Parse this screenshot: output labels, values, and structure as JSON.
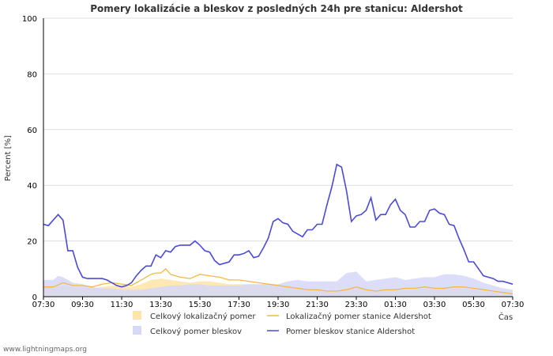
{
  "footer": "www.lightningmaps.org",
  "chart_data": {
    "type": "line",
    "title": "Pomery lokalizácie a bleskov z posledných 24h pre stanicu: Aldershot",
    "ylabel": "Percent   [%]",
    "xlabel": "Čas",
    "ylim": [
      0,
      100
    ],
    "yticks": [
      0,
      20,
      40,
      60,
      80,
      100
    ],
    "xlim": [
      0,
      24
    ],
    "xticks": [
      {
        "t": 0,
        "label": "07:30"
      },
      {
        "t": 2,
        "label": "09:30"
      },
      {
        "t": 4,
        "label": "11:30"
      },
      {
        "t": 6,
        "label": "13:30"
      },
      {
        "t": 8,
        "label": "15:30"
      },
      {
        "t": 10,
        "label": "17:30"
      },
      {
        "t": 12,
        "label": "19:30"
      },
      {
        "t": 14,
        "label": "21:30"
      },
      {
        "t": 16,
        "label": "23:30"
      },
      {
        "t": 18,
        "label": "01:30"
      },
      {
        "t": 20,
        "label": "03:30"
      },
      {
        "t": 22,
        "label": "05:30"
      },
      {
        "t": 24,
        "label": "07:30"
      }
    ],
    "legend": [
      {
        "label": "Celkový lokalizačný pomer",
        "kind": "area",
        "color": "#ffe5a8"
      },
      {
        "label": "Lokalizačný pomer stanice Aldershot",
        "kind": "line",
        "color": "#f5b942"
      },
      {
        "label": "Celkový pomer bleskov",
        "kind": "area",
        "color": "#d6d8f8"
      },
      {
        "label": "Pomer bleskov stanice Aldershot",
        "kind": "line",
        "color": "#4a4ad6"
      }
    ],
    "series": [
      {
        "name": "Pomer bleskov stanice Aldershot",
        "color": "#4a4ad6",
        "x": [
          0,
          0.25,
          0.5,
          0.75,
          1,
          1.25,
          1.5,
          1.75,
          2,
          2.25,
          2.5,
          2.75,
          3,
          3.25,
          3.5,
          3.75,
          4,
          4.25,
          4.5,
          4.75,
          5,
          5.25,
          5.5,
          5.75,
          6,
          6.25,
          6.5,
          6.75,
          7,
          7.25,
          7.5,
          7.75,
          8,
          8.25,
          8.5,
          8.75,
          9,
          9.25,
          9.5,
          9.75,
          10,
          10.25,
          10.5,
          10.75,
          11,
          11.25,
          11.5,
          11.75,
          12,
          12.25,
          12.5,
          12.75,
          13,
          13.25,
          13.5,
          13.75,
          14,
          14.25,
          14.5,
          14.75,
          15,
          15.25,
          15.5,
          15.75,
          16,
          16.25,
          16.5,
          16.75,
          17,
          17.25,
          17.5,
          17.75,
          18,
          18.25,
          18.5,
          18.75,
          19,
          19.25,
          19.5,
          19.75,
          20,
          20.25,
          20.5,
          20.75,
          21,
          21.25,
          21.5,
          21.75,
          22,
          22.25,
          22.5,
          22.75,
          23,
          23.25,
          23.5,
          23.75,
          24
        ],
        "values": [
          26,
          25.5,
          27.5,
          29.5,
          27.5,
          16.5,
          16.5,
          10.5,
          7,
          6.5,
          6.5,
          6.5,
          6.5,
          6,
          5,
          4,
          3.5,
          4,
          5,
          7.5,
          9.5,
          11,
          11,
          15,
          14,
          16.5,
          16,
          18,
          18.5,
          18.5,
          18.5,
          20,
          18.5,
          16.5,
          16,
          13,
          11.5,
          12,
          12.5,
          15,
          15,
          15.5,
          16.5,
          14,
          14.5,
          17.5,
          21,
          27,
          28,
          26.5,
          26,
          23.5,
          22.5,
          21.5,
          24,
          24,
          26,
          26,
          33,
          39.5,
          47.5,
          46.5,
          38,
          27,
          29,
          29.5,
          31,
          35.5,
          27.5,
          29.5,
          29.5,
          33,
          35,
          31,
          29.5,
          25,
          25,
          27,
          27,
          31,
          31.5,
          30,
          29.5,
          26,
          25.5,
          21,
          17,
          12.5,
          12.5,
          10,
          7.5,
          7,
          6.5,
          5.5,
          5.5,
          5,
          4.5
        ]
      },
      {
        "name": "Lokalizačný pomer stanice Aldershot",
        "color": "#f5b942",
        "x": [
          0,
          0.5,
          1,
          1.5,
          2,
          2.5,
          3,
          3.5,
          4,
          4.5,
          5,
          5.5,
          5.75,
          6,
          6.25,
          6.5,
          7,
          7.5,
          8,
          8.5,
          9,
          9.5,
          10,
          10.5,
          11,
          11.5,
          12,
          12.5,
          13,
          13.5,
          14,
          14.5,
          15,
          15.5,
          16,
          16.5,
          17,
          17.5,
          18,
          18.5,
          19,
          19.5,
          20,
          20.5,
          21,
          21.5,
          22,
          22.5,
          23,
          23.5,
          24
        ],
        "values": [
          3.5,
          3.5,
          5,
          4,
          4,
          3.5,
          4.5,
          5,
          4.5,
          4,
          6,
          8,
          8.5,
          8.5,
          10,
          8,
          7,
          6.5,
          8,
          7.5,
          7,
          6,
          6,
          5.5,
          5,
          4.5,
          4,
          3.5,
          3,
          2.5,
          2.5,
          2,
          2,
          2.5,
          3.5,
          2.5,
          2,
          2.5,
          2.5,
          3,
          3,
          3.5,
          3,
          3,
          3.5,
          3.5,
          3,
          2.5,
          2,
          1.5,
          1
        ]
      },
      {
        "name": "Celkový pomer bleskov",
        "color": "#d6d8f8",
        "x": [
          0,
          0.5,
          0.75,
          1,
          1.5,
          2,
          2.5,
          3,
          3.5,
          4,
          4.5,
          5,
          5.5,
          6,
          6.5,
          7,
          7.5,
          8,
          8.5,
          9,
          9.5,
          10,
          10.5,
          11,
          11.5,
          12,
          12.5,
          13,
          13.5,
          14,
          14.5,
          15,
          15.5,
          16,
          16.5,
          17,
          17.5,
          18,
          18.5,
          19,
          19.5,
          20,
          20.5,
          21,
          21.5,
          22,
          22.5,
          23,
          23.5,
          24
        ],
        "values": [
          6,
          6,
          7.5,
          7,
          5,
          4.5,
          3.5,
          3,
          3,
          2.5,
          2.5,
          2.5,
          3,
          3.5,
          4,
          4,
          4.5,
          4.5,
          4,
          4,
          4,
          4,
          4.5,
          4.5,
          4.5,
          4.5,
          5.5,
          6,
          5.5,
          5.5,
          5.5,
          5.5,
          8.5,
          9,
          5.5,
          6,
          6.5,
          7,
          6,
          6.5,
          7,
          7,
          8,
          8,
          7.5,
          6.5,
          5,
          4,
          3,
          2.5
        ]
      },
      {
        "name": "Celkový lokalizačný pomer",
        "color": "#ffe5a8",
        "x": [
          0,
          0.5,
          1,
          1.5,
          2,
          2.5,
          3,
          3.5,
          4,
          4.5,
          5,
          5.5,
          6,
          6.5,
          7,
          7.5,
          8,
          8.5,
          9,
          9.5,
          10,
          10.5,
          11,
          11.5,
          12,
          12.5,
          13,
          13.5,
          14,
          14.5,
          15,
          15.5,
          16,
          16.5,
          17,
          17.5,
          18,
          18.5,
          19,
          19.5,
          20,
          20.5,
          21,
          21.5,
          22,
          22.5,
          23,
          23.5,
          24
        ],
        "values": [
          3.5,
          3.5,
          4,
          3.5,
          3.5,
          3,
          3.5,
          4,
          4,
          3.5,
          4.5,
          6,
          6.5,
          6,
          5.5,
          5,
          5.5,
          5.5,
          5,
          4.5,
          4.5,
          4.5,
          4.5,
          4,
          4,
          3.5,
          3,
          2.5,
          2.5,
          2,
          2,
          2.5,
          3,
          2.5,
          2,
          2.5,
          2.5,
          2.5,
          2.5,
          3,
          3,
          3,
          3,
          3,
          2.5,
          2,
          1.5,
          1,
          1
        ]
      }
    ]
  }
}
